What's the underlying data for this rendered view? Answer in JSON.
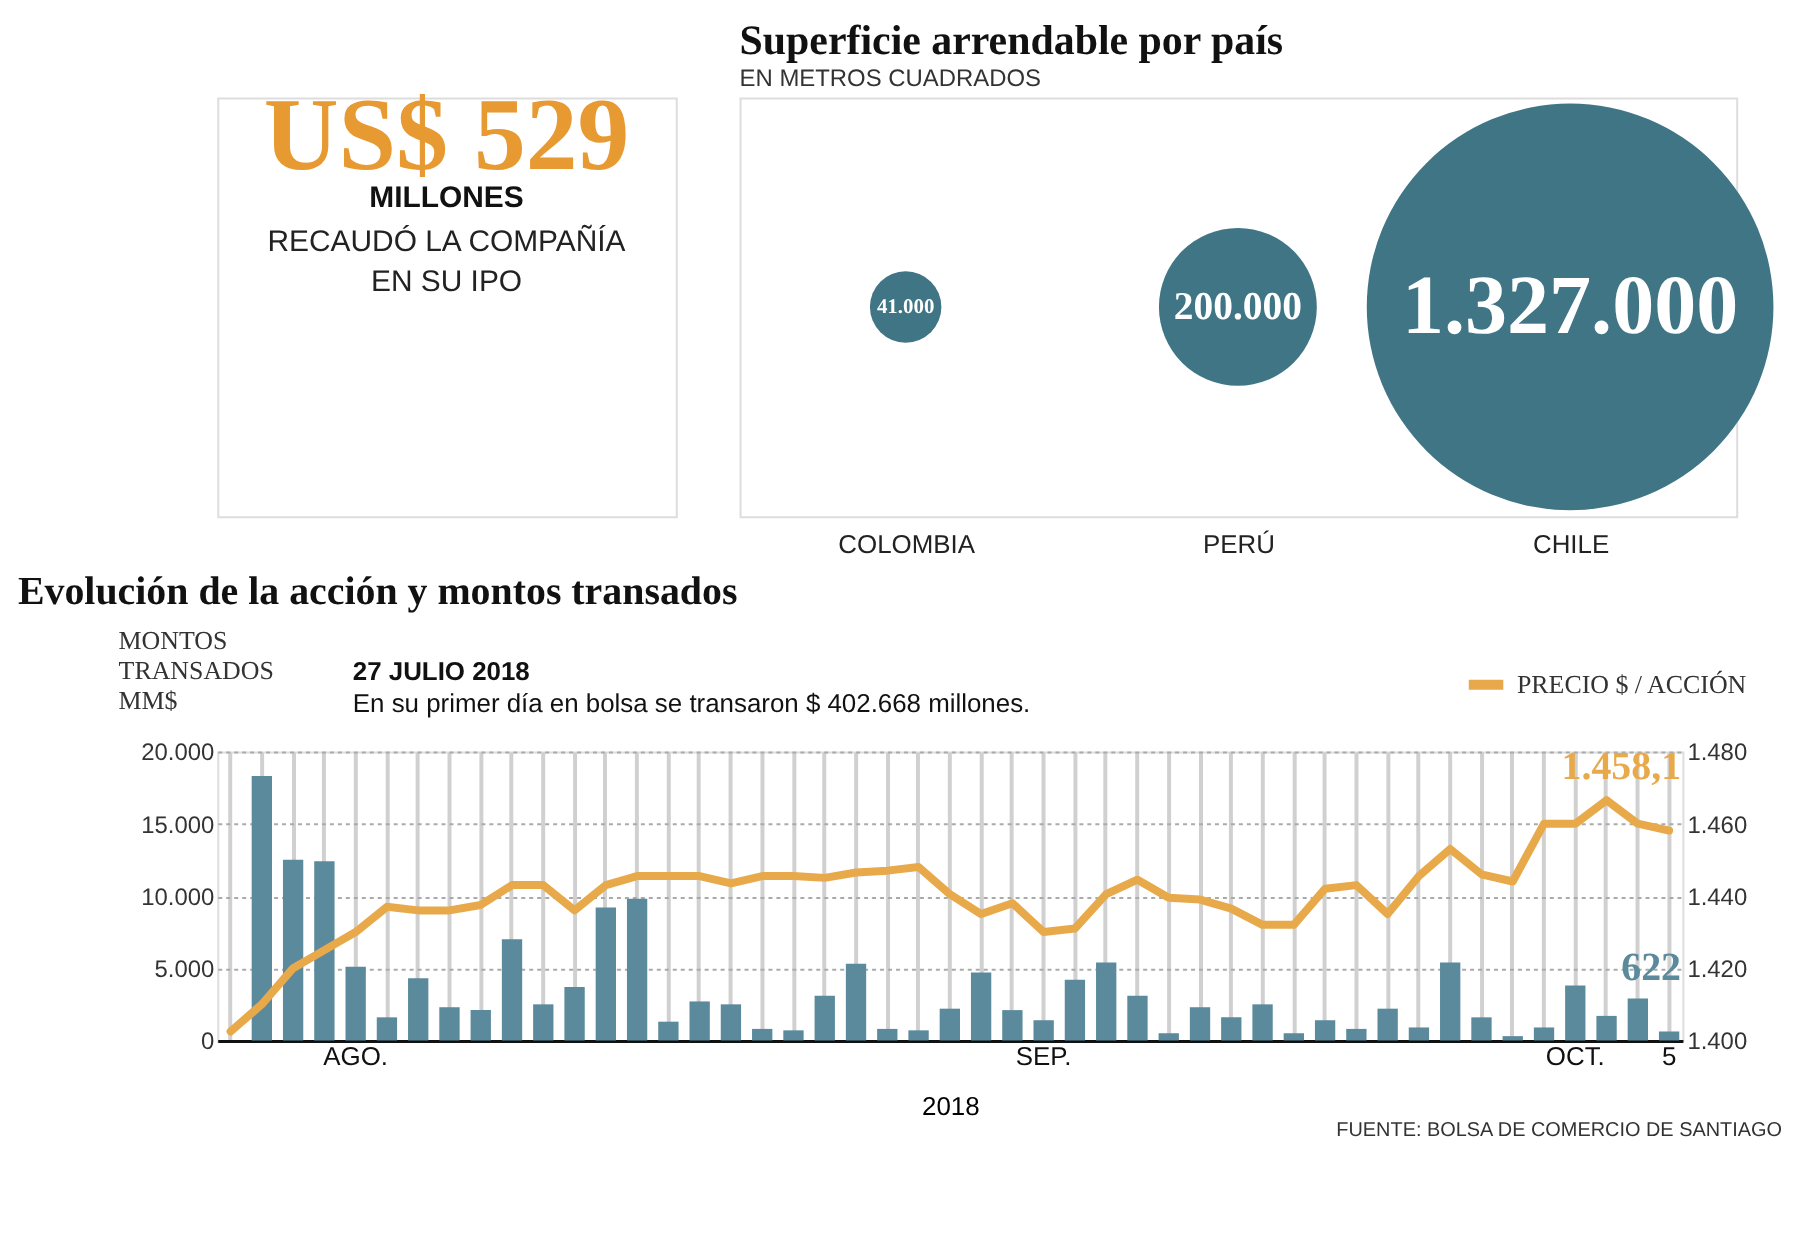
{
  "chart_data": [
    {
      "type": "other",
      "title": "US$ 529",
      "subtitle": "MILLONES",
      "annotations": [
        "RECAUDÓ LA COMPAÑÍA",
        "EN SU IPO"
      ]
    },
    {
      "type": "other",
      "title": "Superficie arrendable por país",
      "subtitle": "EN METROS CUADRADOS",
      "categories": [
        "COLOMBIA",
        "PERÚ",
        "CHILE"
      ],
      "values": [
        41000,
        200000,
        1327000
      ],
      "colors": [
        "#3f7585",
        "#3f7585",
        "#3f7585"
      ],
      "value_labels": [
        "41.000",
        "200.000",
        "1.327.000"
      ]
    },
    {
      "type": "bar",
      "title": "Evolución de la acción y montos transados",
      "xlabel": "2018",
      "ylabel": "MONTOS TRANSADOS MM$",
      "categories": [
        null,
        null,
        null,
        null,
        "AGO.",
        null,
        null,
        null,
        null,
        null,
        null,
        null,
        null,
        null,
        null,
        null,
        null,
        null,
        null,
        null,
        null,
        null,
        null,
        null,
        null,
        null,
        "SEP.",
        null,
        null,
        null,
        null,
        null,
        null,
        null,
        null,
        null,
        null,
        null,
        null,
        null,
        null,
        null,
        null,
        "OCT.",
        null,
        null,
        "5"
      ],
      "ylim": [
        0,
        20000
      ],
      "yticks": [
        0,
        {
          "value": 5000,
          "label": "5.000"
        },
        {
          "value": 10000,
          "label": "10.000"
        },
        {
          "value": 15000,
          "label": "15.000"
        },
        {
          "value": 20000,
          "label": "20.000"
        }
      ],
      "y2lim": [
        1400,
        1480
      ],
      "y2ticks": [
        {
          "value": 1400,
          "label": "1.400"
        },
        {
          "value": 1420,
          "label": "1.420"
        },
        {
          "value": 1440,
          "label": "1.440"
        },
        {
          "value": 1460,
          "label": "1.460"
        },
        {
          "value": 1480,
          "label": "1.480"
        }
      ],
      "series": [
        {
          "type": "bar",
          "color": "#5b8a9c",
          "values": [
            null,
            18300,
            12500,
            12400,
            5100,
            1600,
            4300,
            2300,
            2100,
            7000,
            2500,
            3700,
            9200,
            9800,
            1300,
            2700,
            2500,
            800,
            700,
            3100,
            5300,
            800,
            700,
            2200,
            4700,
            2100,
            1400,
            4200,
            5400,
            3100,
            500,
            2300,
            1600,
            2500,
            500,
            1400,
            800,
            2200,
            900,
            5400,
            1600,
            300,
            900,
            3800,
            1700,
            2900,
            622
          ],
          "value_labels": [
            null,
            null,
            null,
            null,
            null,
            null,
            null,
            null,
            null,
            null,
            null,
            null,
            null,
            null,
            null,
            null,
            null,
            null,
            null,
            null,
            null,
            null,
            null,
            null,
            null,
            null,
            null,
            null,
            null,
            null,
            null,
            null,
            null,
            null,
            null,
            null,
            null,
            null,
            null,
            null,
            null,
            null,
            null,
            null,
            null,
            null,
            "622"
          ]
        },
        {
          "type": "line",
          "name": "PRECIO $ / ACCIÓN",
          "axis": "y2",
          "color": "#e8a94a",
          "values": [
            1402.5,
            1410,
            1420,
            1425,
            1430,
            1437,
            1436,
            1436,
            1437.5,
            1443,
            1443,
            1436,
            1443,
            1445.5,
            1445.5,
            1445.5,
            1443.5,
            1445.5,
            1445.5,
            1445,
            1446.5,
            1447,
            1448,
            1440.5,
            1435,
            1438,
            1430,
            1431,
            1440.5,
            1444.5,
            1439.5,
            1439,
            1436.5,
            1432,
            1432,
            1442,
            1443,
            1435,
            1445.5,
            1453,
            1446,
            1444,
            1460,
            1460,
            1466.5,
            1460,
            1458.1
          ],
          "value_labels": [
            null,
            null,
            null,
            null,
            null,
            null,
            null,
            null,
            null,
            null,
            null,
            null,
            null,
            null,
            null,
            null,
            null,
            null,
            null,
            null,
            null,
            null,
            null,
            null,
            null,
            null,
            null,
            null,
            null,
            null,
            null,
            null,
            null,
            null,
            null,
            null,
            null,
            null,
            null,
            null,
            null,
            null,
            null,
            null,
            null,
            null,
            "1.458,1"
          ]
        }
      ],
      "grid": true,
      "legend": "top right",
      "annotations": [
        "27 JULIO 2018",
        "En su primer día en bolsa se transaron $ 402.668 millones.",
        "FUENTE: BOLSA DE COMERCIO DE SANTIAGO"
      ]
    }
  ]
}
